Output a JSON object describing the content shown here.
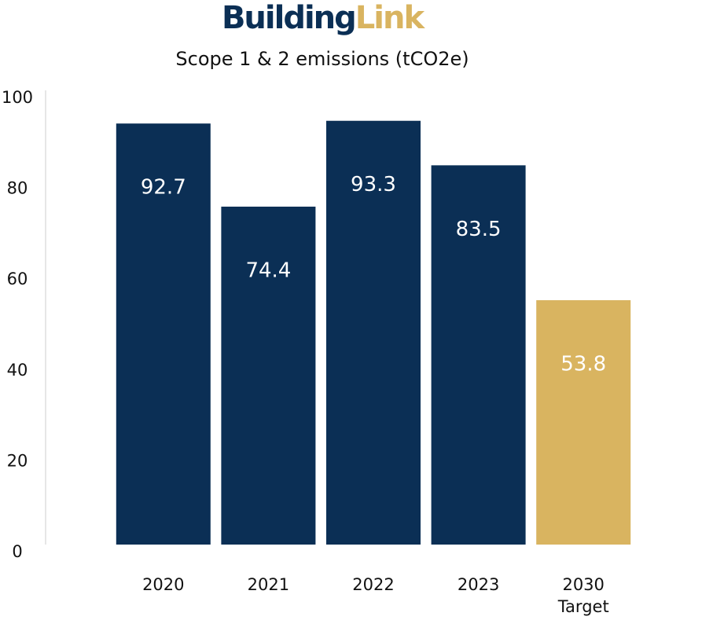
{
  "logo": {
    "first": "Building",
    "second": "Link"
  },
  "chart_data": {
    "type": "bar",
    "title": "Scope 1 & 2 emissions (tCO2e)",
    "categories": [
      "2020",
      "2021",
      "2022",
      "2023",
      "2030 Target"
    ],
    "values": [
      92.7,
      74.4,
      93.3,
      83.5,
      53.8
    ],
    "colors": [
      "#0b2f55",
      "#0b2f55",
      "#0b2f55",
      "#0b2f55",
      "#d9b460"
    ],
    "ylim": [
      0,
      100
    ],
    "yticks": [
      0,
      20,
      40,
      60,
      80,
      100
    ],
    "grid": false
  }
}
